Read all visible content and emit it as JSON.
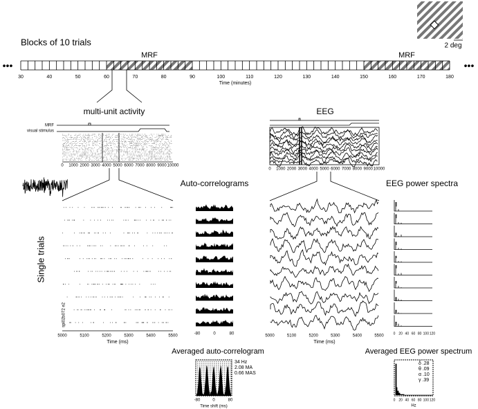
{
  "scale_bar": {
    "label": "2 deg"
  },
  "timeline": {
    "title": "Blocks of 10 trials",
    "ticks": [
      30,
      40,
      50,
      60,
      70,
      80,
      90,
      100,
      110,
      120,
      130,
      140,
      150,
      160,
      170,
      180
    ],
    "axis_label": "Time (minutes)",
    "shaded": [
      {
        "label": "MRF",
        "start": 60,
        "end": 90
      },
      {
        "label": "MRF",
        "start": 150,
        "end": 180
      }
    ]
  },
  "multi_unit": {
    "title": "multi-unit  activity",
    "row_labels": [
      "MRF",
      "visual  stimulus"
    ],
    "ticks": [
      0,
      1000,
      2000,
      3000,
      4000,
      5000,
      6000,
      7000,
      8000,
      9000,
      10000
    ]
  },
  "eeg": {
    "title": "EEG",
    "ticks": [
      0,
      1000,
      2000,
      3000,
      4000,
      5000,
      6000,
      7000,
      8000,
      9000,
      10000
    ]
  },
  "single_trials": {
    "label": "Single trials",
    "unit_id": "spl02b072 e2",
    "time_ticks": [
      5000,
      5100,
      5200,
      5300,
      5400,
      5500
    ],
    "time_label": "Time (ms)"
  },
  "autocorrelograms": {
    "title": "Auto-correlograms",
    "ticks": [
      -80,
      0,
      80
    ]
  },
  "power_spectra": {
    "title": "EEG power spectra",
    "ticks": [
      0,
      20,
      40,
      60,
      80,
      100,
      120
    ]
  },
  "avg_autocorrelogram": {
    "title": "Averaged auto-correlogram",
    "stats": [
      "34 Hz",
      "2.08 MA",
      "0.66 MAS"
    ],
    "ticks": [
      -80,
      0,
      80
    ],
    "axis_label": "Time shift (ms)"
  },
  "avg_spectrum": {
    "title": "Averaged EEG power spectrum",
    "bands": [
      "δ .28",
      "θ .09",
      "α .10",
      "γ .39"
    ],
    "ticks": [
      0,
      20,
      40,
      60,
      80,
      100,
      120
    ],
    "axis_label": "Hz"
  }
}
